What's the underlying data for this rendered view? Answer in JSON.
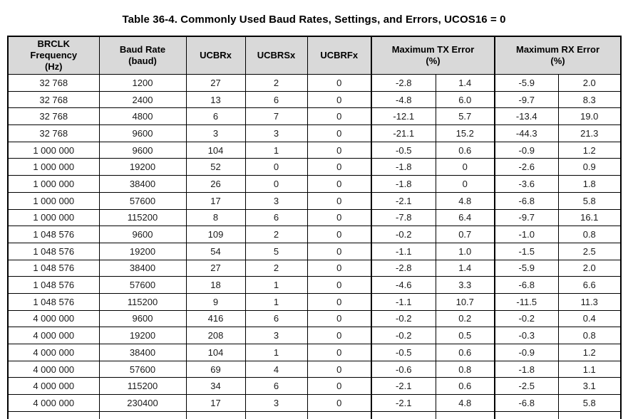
{
  "title": "Table 36-4. Commonly Used Baud Rates, Settings, and Errors, UCOS16 = 0",
  "table": {
    "headers": [
      {
        "label": "BRCLK\nFrequency\n(Hz)"
      },
      {
        "label": "Baud Rate\n(baud)"
      },
      {
        "label": "UCBRx"
      },
      {
        "label": "UCBRSx"
      },
      {
        "label": "UCBRFx"
      },
      {
        "label": "Maximum TX Error\n(%)"
      },
      {
        "label": "Maximum RX Error\n(%)"
      }
    ],
    "rows": [
      [
        "32 768",
        "1200",
        "27",
        "2",
        "0",
        "-2.8",
        "1.4",
        "-5.9",
        "2.0"
      ],
      [
        "32 768",
        "2400",
        "13",
        "6",
        "0",
        "-4.8",
        "6.0",
        "-9.7",
        "8.3"
      ],
      [
        "32 768",
        "4800",
        "6",
        "7",
        "0",
        "-12.1",
        "5.7",
        "-13.4",
        "19.0"
      ],
      [
        "32 768",
        "9600",
        "3",
        "3",
        "0",
        "-21.1",
        "15.2",
        "-44.3",
        "21.3"
      ],
      [
        "1 000 000",
        "9600",
        "104",
        "1",
        "0",
        "-0.5",
        "0.6",
        "-0.9",
        "1.2"
      ],
      [
        "1 000 000",
        "19200",
        "52",
        "0",
        "0",
        "-1.8",
        "0",
        "-2.6",
        "0.9"
      ],
      [
        "1 000 000",
        "38400",
        "26",
        "0",
        "0",
        "-1.8",
        "0",
        "-3.6",
        "1.8"
      ],
      [
        "1 000 000",
        "57600",
        "17",
        "3",
        "0",
        "-2.1",
        "4.8",
        "-6.8",
        "5.8"
      ],
      [
        "1 000 000",
        "115200",
        "8",
        "6",
        "0",
        "-7.8",
        "6.4",
        "-9.7",
        "16.1"
      ],
      [
        "1 048 576",
        "9600",
        "109",
        "2",
        "0",
        "-0.2",
        "0.7",
        "-1.0",
        "0.8"
      ],
      [
        "1 048 576",
        "19200",
        "54",
        "5",
        "0",
        "-1.1",
        "1.0",
        "-1.5",
        "2.5"
      ],
      [
        "1 048 576",
        "38400",
        "27",
        "2",
        "0",
        "-2.8",
        "1.4",
        "-5.9",
        "2.0"
      ],
      [
        "1 048 576",
        "57600",
        "18",
        "1",
        "0",
        "-4.6",
        "3.3",
        "-6.8",
        "6.6"
      ],
      [
        "1 048 576",
        "115200",
        "9",
        "1",
        "0",
        "-1.1",
        "10.7",
        "-11.5",
        "11.3"
      ],
      [
        "4 000 000",
        "9600",
        "416",
        "6",
        "0",
        "-0.2",
        "0.2",
        "-0.2",
        "0.4"
      ],
      [
        "4 000 000",
        "19200",
        "208",
        "3",
        "0",
        "-0.2",
        "0.5",
        "-0.3",
        "0.8"
      ],
      [
        "4 000 000",
        "38400",
        "104",
        "1",
        "0",
        "-0.5",
        "0.6",
        "-0.9",
        "1.2"
      ],
      [
        "4 000 000",
        "57600",
        "69",
        "4",
        "0",
        "-0.6",
        "0.8",
        "-1.8",
        "1.1"
      ],
      [
        "4 000 000",
        "115200",
        "34",
        "6",
        "0",
        "-2.1",
        "0.6",
        "-2.5",
        "3.1"
      ],
      [
        "4 000 000",
        "230400",
        "17",
        "3",
        "0",
        "-2.1",
        "4.8",
        "-6.8",
        "5.8"
      ]
    ]
  },
  "colors": {
    "header_bg": "#d9d9d9",
    "border": "#000000",
    "text": "#1a1a1a",
    "title_text": "#000000",
    "page_bg": "#ffffff"
  }
}
